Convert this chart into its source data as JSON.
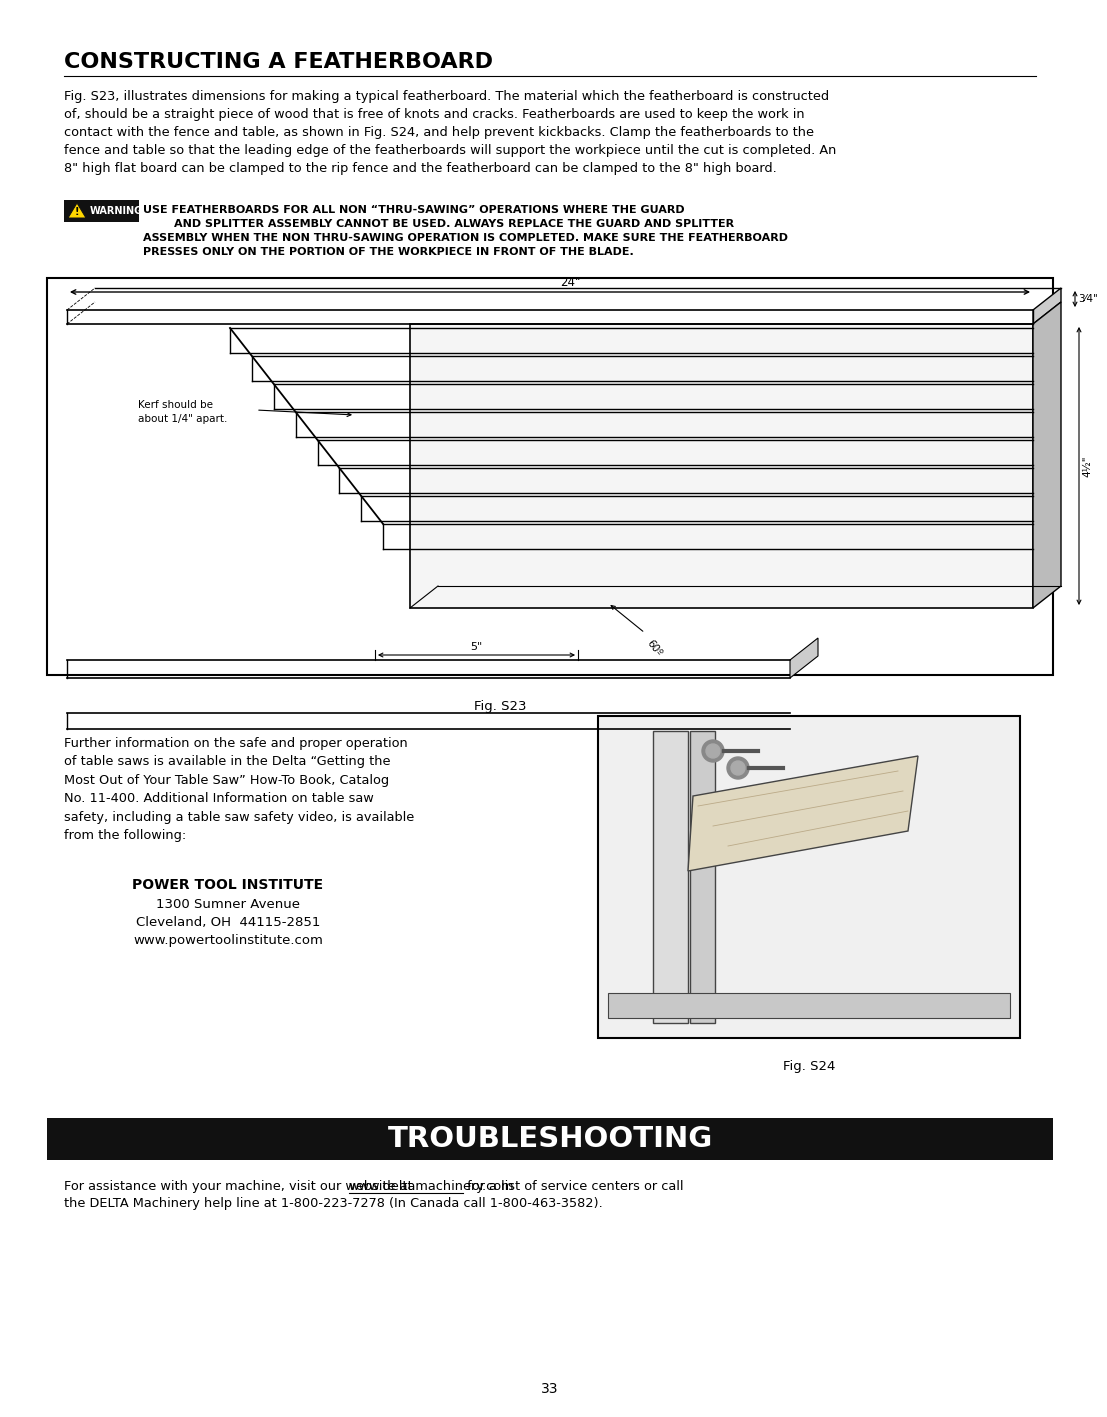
{
  "page_bg": "#ffffff",
  "title": "CONSTRUCTING A FEATHERBOARD",
  "body_text_1": "Fig. S23, illustrates dimensions for making a typical featherboard. The material which the featherboard is constructed\nof, should be a straight piece of wood that is free of knots and cracks. Featherboards are used to keep the work in\ncontact with the fence and table, as shown in Fig. S24, and help prevent kickbacks. Clamp the featherboards to the\nfence and table so that the leading edge of the featherboards will support the workpiece until the cut is completed. An\n8\" high flat board can be clamped to the rip fence and the featherboard can be clamped to the 8\" high board.",
  "warning_label": "WARNING",
  "warning_line1": "USE FEATHERBOARDS FOR ALL NON “THRU-SAWING” OPERATIONS WHERE THE GUARD",
  "warning_line2": "        AND SPLITTER ASSEMBLY CANNOT BE USED. ALWAYS REPLACE THE GUARD AND SPLITTER",
  "warning_line3": "ASSEMBLY WHEN THE NON THRU-SAWING OPERATION IS COMPLETED. MAKE SURE THE FEATHERBOARD",
  "warning_line4": "PRESSES ONLY ON THE PORTION OF THE WORKPIECE IN FRONT OF THE BLADE.",
  "fig_s23_label": "Fig. S23",
  "fig_s24_label": "Fig. S24",
  "further_info_text": "Further information on the safe and proper operation\nof table saws is available in the Delta “Getting the\nMost Out of Your Table Saw” How-To Book, Catalog\nNo. 11-400. Additional Information on table saw\nsafety, including a table saw safety video, is available\nfrom the following:",
  "pti_name": "POWER TOOL INSTITUTE",
  "pti_addr1": "1300 Sumner Avenue",
  "pti_addr2": "Cleveland, OH  44115-2851",
  "pti_web": "www.powertoolinstitute.com",
  "troubleshooting_title": "TROUBLESHOOTING",
  "ts_line1_pre": "For assistance with your machine, visit our website at ",
  "ts_url": "www.deltamachinery.com",
  "ts_line1_post": " for a list of service centers or call",
  "ts_line2": "the DELTA Machinery help line at 1-800-223-7278 (In Canada call 1-800-463-3582).",
  "page_number": "33",
  "dim_24": "24\"",
  "dim_34": "3⁄4\"",
  "dim_4half": "4½\"",
  "dim_60": "60º",
  "dim_5": "5\"",
  "kerf_label_1": "Kerf should be",
  "kerf_label_2": "about 1/4\" apart."
}
